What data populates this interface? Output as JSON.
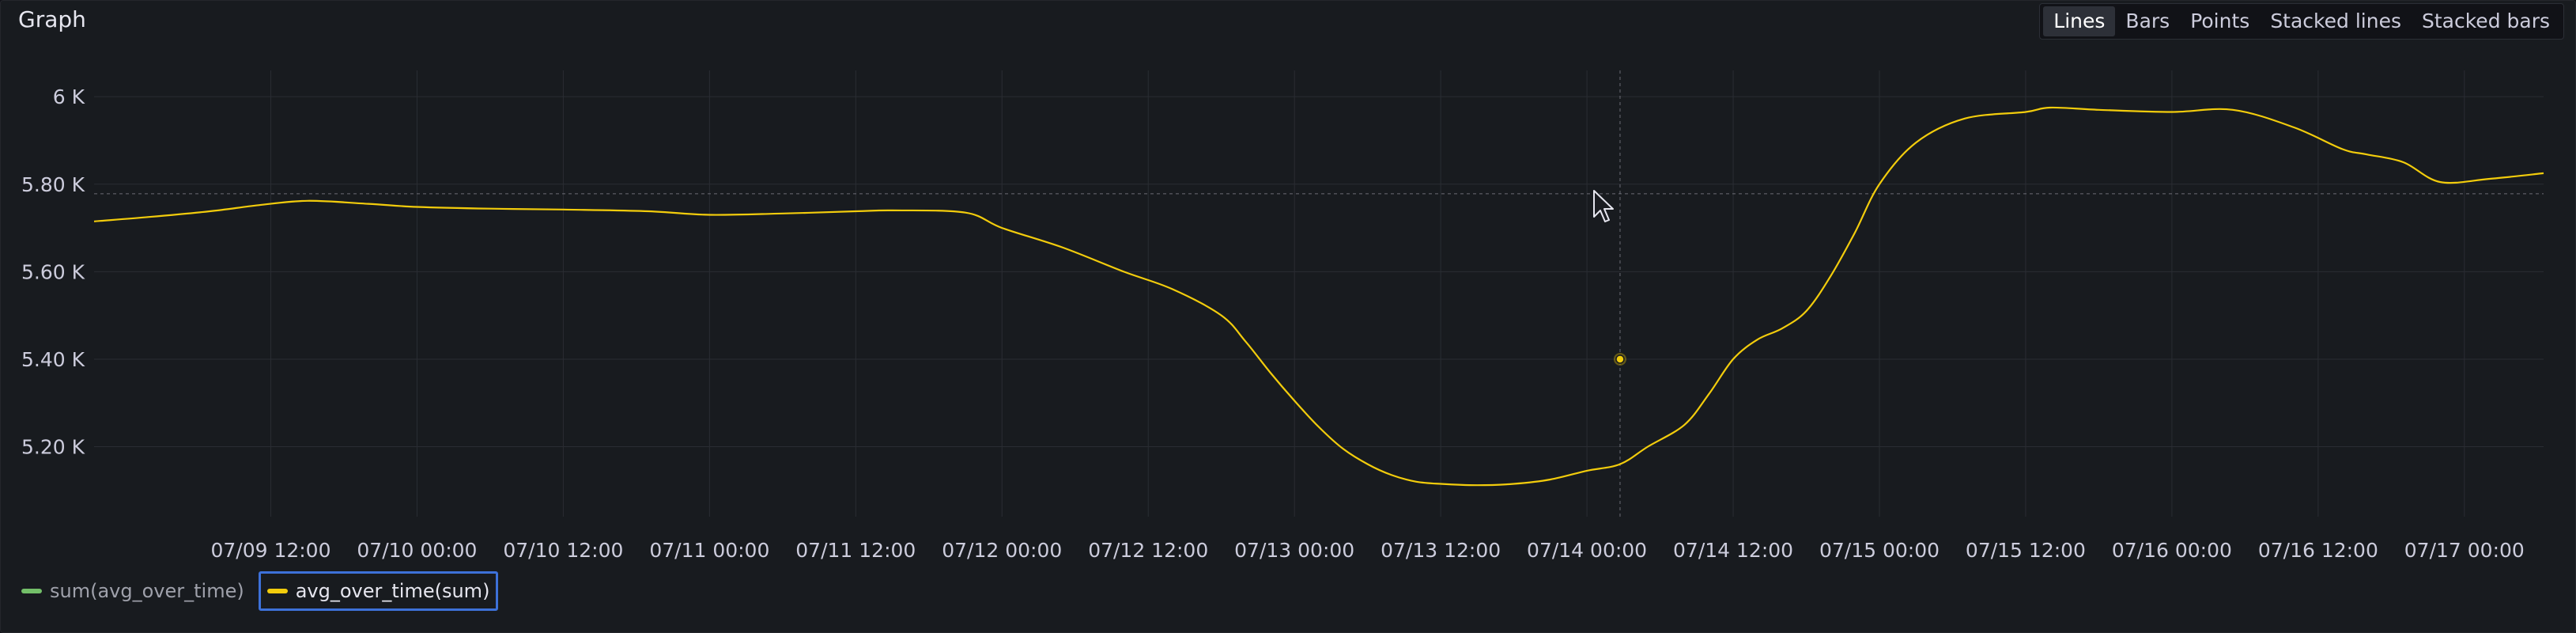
{
  "panel": {
    "title": "Graph"
  },
  "view_modes": [
    {
      "label": "Lines",
      "active": true
    },
    {
      "label": "Bars",
      "active": false
    },
    {
      "label": "Points",
      "active": false
    },
    {
      "label": "Stacked lines",
      "active": false
    },
    {
      "label": "Stacked bars",
      "active": false
    }
  ],
  "colors": {
    "series_line": "#f2cc0c",
    "legend_green": "#73bf69",
    "grid": "#2a2d33",
    "axis_text": "#ccccdc",
    "selected_border": "#3d71d9"
  },
  "legend": [
    {
      "name": "sum(avg_over_time)",
      "color": "#73bf69",
      "selected": false
    },
    {
      "name": "avg_over_time(sum)",
      "color": "#f2cc0c",
      "selected": true
    }
  ],
  "chart_data": {
    "type": "line",
    "title": "",
    "xlabel": "",
    "ylabel": "",
    "ylim": [
      5040,
      6060
    ],
    "y_ticks": [
      {
        "value": 6000,
        "label": "6 K"
      },
      {
        "value": 5800,
        "label": "5.80 K"
      },
      {
        "value": 5600,
        "label": "5.60 K"
      },
      {
        "value": 5400,
        "label": "5.40 K"
      },
      {
        "value": 5200,
        "label": "5.20 K"
      }
    ],
    "xlim": [
      "07/08 21:30",
      "07/17 06:30"
    ],
    "x_ticks": [
      {
        "value": "07/09 12:00",
        "label": "07/09 12:00"
      },
      {
        "value": "07/10 00:00",
        "label": "07/10 00:00"
      },
      {
        "value": "07/10 12:00",
        "label": "07/10 12:00"
      },
      {
        "value": "07/11 00:00",
        "label": "07/11 00:00"
      },
      {
        "value": "07/11 12:00",
        "label": "07/11 12:00"
      },
      {
        "value": "07/12 00:00",
        "label": "07/12 00:00"
      },
      {
        "value": "07/12 12:00",
        "label": "07/12 12:00"
      },
      {
        "value": "07/13 00:00",
        "label": "07/13 00:00"
      },
      {
        "value": "07/13 12:00",
        "label": "07/13 12:00"
      },
      {
        "value": "07/14 00:00",
        "label": "07/14 00:00"
      },
      {
        "value": "07/14 12:00",
        "label": "07/14 12:00"
      },
      {
        "value": "07/15 00:00",
        "label": "07/15 00:00"
      },
      {
        "value": "07/15 12:00",
        "label": "07/15 12:00"
      },
      {
        "value": "07/16 00:00",
        "label": "07/16 00:00"
      },
      {
        "value": "07/16 12:00",
        "label": "07/16 12:00"
      },
      {
        "value": "07/17 00:00",
        "label": "07/17 00:00"
      }
    ],
    "grid": true,
    "legend_position": "bottom-left",
    "hover": {
      "x": "07/14 02:43",
      "y": 5400,
      "crosshair_y": 5778
    },
    "series": [
      {
        "name": "avg_over_time(sum)",
        "x": [
          "07/08 21:30",
          "07/09 02:00",
          "07/09 07:00",
          "07/09 11:00",
          "07/09 15:00",
          "07/09 20:00",
          "07/10 00:00",
          "07/10 06:00",
          "07/10 12:00",
          "07/10 19:00",
          "07/11 00:00",
          "07/11 06:00",
          "07/11 12:00",
          "07/11 15:00",
          "07/11 21:00",
          "07/12 00:00",
          "07/12 05:00",
          "07/12 10:00",
          "07/12 14:00",
          "07/12 18:00",
          "07/12 20:00",
          "07/12 22:00",
          "07/13 00:00",
          "07/13 02:00",
          "07/13 04:00",
          "07/13 06:00",
          "07/13 08:00",
          "07/13 10:00",
          "07/13 12:00",
          "07/13 15:00",
          "07/13 18:00",
          "07/13 21:00",
          "07/14 00:00",
          "07/14 02:43",
          "07/14 05:00",
          "07/14 08:00",
          "07/14 10:00",
          "07/14 12:00",
          "07/14 14:00",
          "07/14 16:00",
          "07/14 18:00",
          "07/14 20:00",
          "07/14 22:00",
          "07/15 00:00",
          "07/15 03:00",
          "07/15 07:00",
          "07/15 12:00",
          "07/15 14:00",
          "07/15 18:00",
          "07/16 00:00",
          "07/16 05:00",
          "07/16 10:00",
          "07/16 14:00",
          "07/16 16:00",
          "07/16 19:00",
          "07/16 22:00",
          "07/17 02:00",
          "07/17 06:30"
        ],
        "values": [
          5715,
          5725,
          5738,
          5752,
          5762,
          5755,
          5748,
          5744,
          5742,
          5738,
          5730,
          5733,
          5738,
          5740,
          5735,
          5700,
          5655,
          5600,
          5560,
          5500,
          5440,
          5370,
          5305,
          5245,
          5195,
          5160,
          5135,
          5120,
          5115,
          5112,
          5115,
          5125,
          5145,
          5160,
          5200,
          5250,
          5320,
          5400,
          5445,
          5470,
          5510,
          5590,
          5690,
          5800,
          5895,
          5950,
          5965,
          5975,
          5970,
          5965,
          5970,
          5930,
          5880,
          5868,
          5850,
          5805,
          5812,
          5825
        ]
      }
    ]
  }
}
